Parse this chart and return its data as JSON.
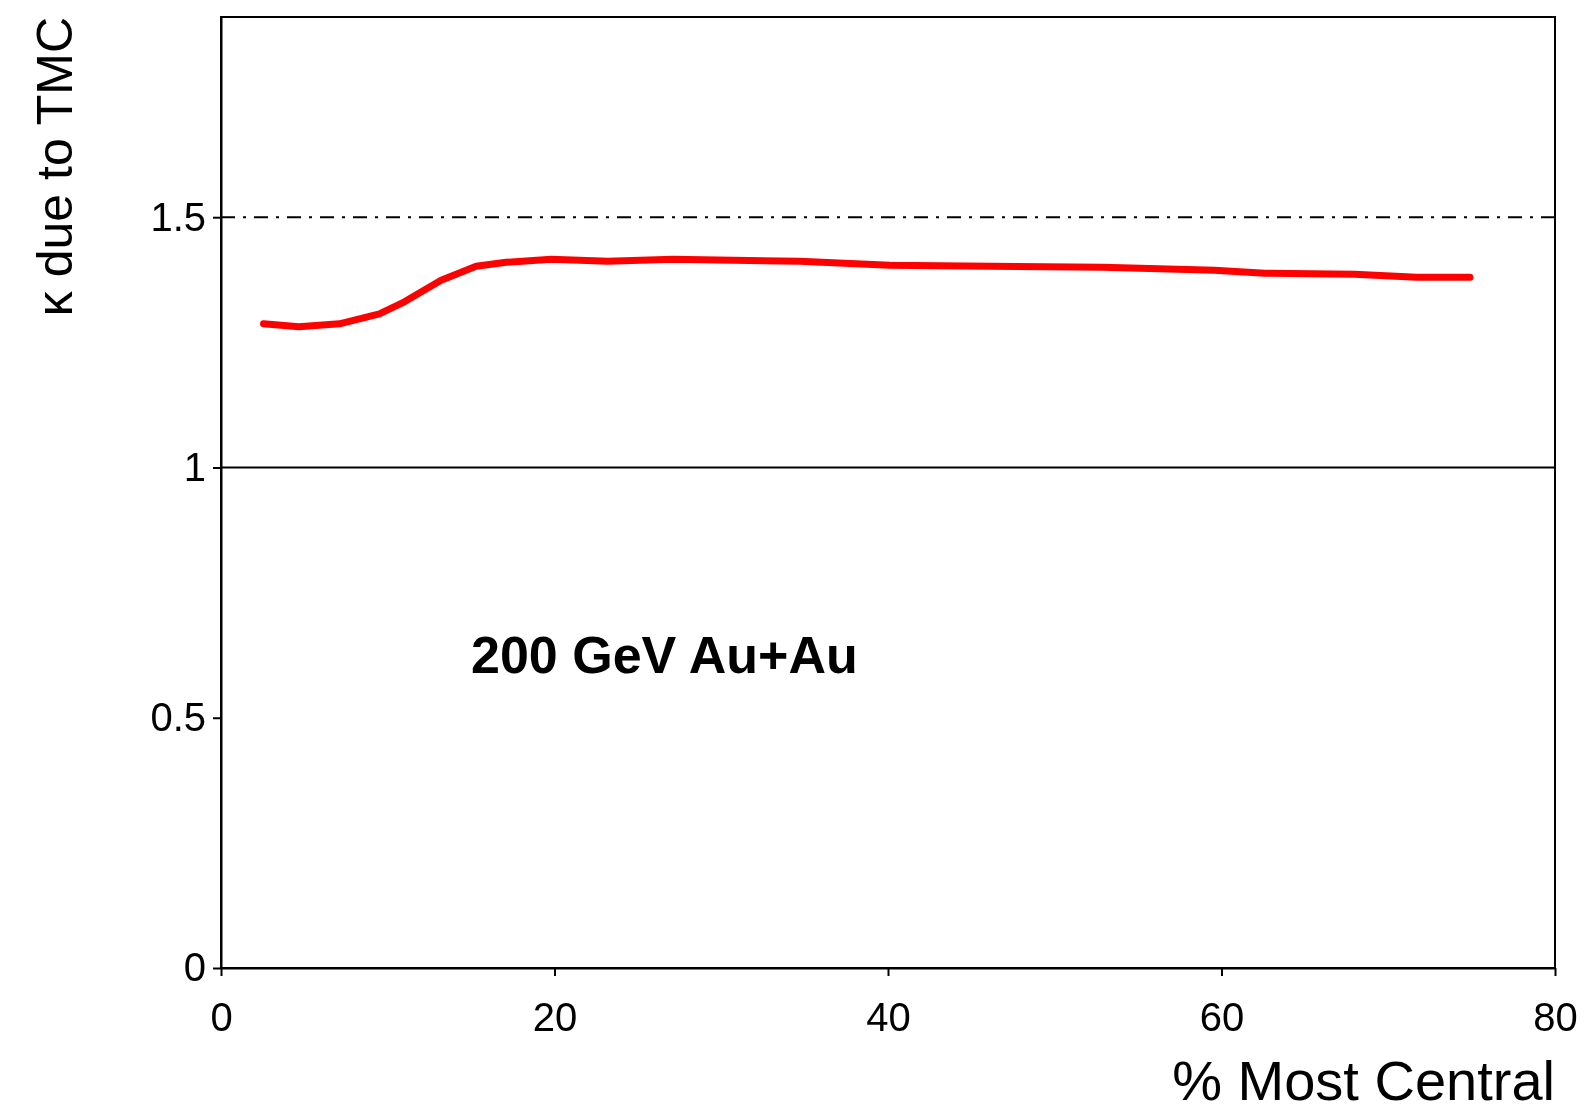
{
  "chart_data": {
    "type": "line",
    "xlabel": "% Most Central",
    "ylabel": "κ due to TMC",
    "x": [
      2.55,
      4.67,
      7.1,
      9.5,
      11.0,
      13.2,
      15.3,
      17.1,
      19.8,
      23.2,
      27.1,
      34.7,
      40.1,
      52.9,
      59.6,
      62.6,
      68.0,
      71.7,
      74.9
    ],
    "series": [
      {
        "color": "#ff0000",
        "values": [
          1.287,
          1.281,
          1.287,
          1.307,
          1.331,
          1.374,
          1.402,
          1.41,
          1.416,
          1.412,
          1.416,
          1.412,
          1.404,
          1.4,
          1.394,
          1.388,
          1.386,
          1.38,
          1.38
        ]
      }
    ],
    "xlim": [
      0,
      80
    ],
    "xticks": [
      0,
      20,
      40,
      60,
      80
    ],
    "ylim": [
      0,
      1.9
    ],
    "yticks": [
      0,
      0.5,
      1,
      1.5
    ],
    "ref_lines": [
      {
        "axis": "y",
        "value": 1.5,
        "color": "#000000",
        "line_style": "dashed"
      },
      {
        "axis": "y",
        "value": 1,
        "color": "#000000",
        "line_style": "solid"
      }
    ],
    "annotations": [
      "200 GeV Au+Au"
    ],
    "grid": false,
    "marker": "none",
    "line_style": "solid"
  }
}
